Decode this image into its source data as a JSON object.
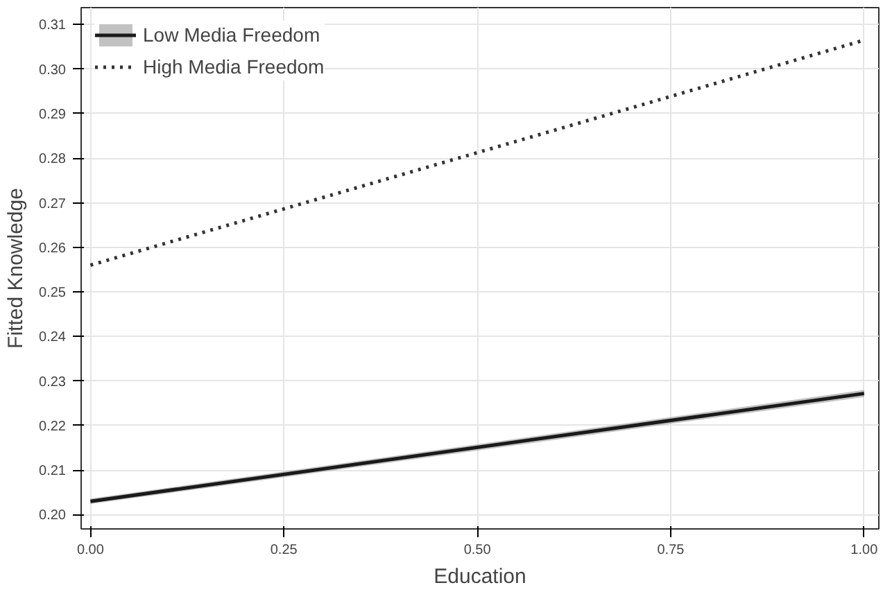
{
  "chart_data": {
    "type": "line",
    "xlabel": "Education",
    "ylabel": "Fitted Knowledge",
    "x": [
      0,
      1
    ],
    "series": [
      {
        "name": "Low Media Freedom",
        "color": "#1a1a1a",
        "values": [
          0.203,
          0.2272
        ],
        "lower": [
          0.2024,
          0.2264
        ],
        "upper": [
          0.2036,
          0.228
        ],
        "line_style": "solid"
      },
      {
        "name": "High Media Freedom",
        "color": "#333333",
        "values": [
          0.256,
          0.3065
        ],
        "line_style": "dotted"
      }
    ],
    "xlim": [
      -0.012,
      1.019
    ],
    "ylim": [
      0.1968,
      0.3138
    ],
    "xticks": [
      {
        "value": 0,
        "label": "0.00"
      },
      {
        "value": 0.25,
        "label": "0.25"
      },
      {
        "value": 0.5,
        "label": "0.50"
      },
      {
        "value": 0.75,
        "label": "0.75"
      },
      {
        "value": 1,
        "label": "1.00"
      }
    ],
    "yticks": [
      {
        "value": 0.2,
        "label": "0.20"
      },
      {
        "value": 0.21,
        "label": "0.21"
      },
      {
        "value": 0.22,
        "label": "0.22"
      },
      {
        "value": 0.23,
        "label": "0.23"
      },
      {
        "value": 0.24,
        "label": "0.24"
      },
      {
        "value": 0.25,
        "label": "0.25"
      },
      {
        "value": 0.26,
        "label": "0.26"
      },
      {
        "value": 0.27,
        "label": "0.27"
      },
      {
        "value": 0.28,
        "label": "0.28"
      },
      {
        "value": 0.29,
        "label": "0.29"
      },
      {
        "value": 0.3,
        "label": "0.30"
      },
      {
        "value": 0.31,
        "label": "0.31"
      }
    ],
    "grid": true,
    "legend": "top left",
    "marker": "none"
  }
}
